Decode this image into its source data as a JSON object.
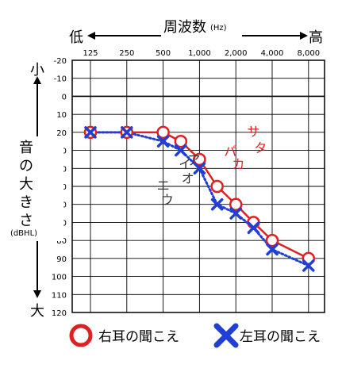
{
  "chart_data": {
    "type": "line",
    "freq_title": "周波数",
    "freq_unit": "(Hz)",
    "freq_low": "低",
    "freq_high": "高",
    "level_small": "小",
    "level_large": "大",
    "ylabel": "音の大きさ",
    "yunit": "(dBHL)",
    "categories": [
      "125",
      "250",
      "500",
      "1,000",
      "2,000",
      "4,000",
      "8,000"
    ],
    "x_tick_values": [
      125,
      250,
      500,
      1000,
      2000,
      4000,
      8000
    ],
    "x_scale": "log2",
    "ylim": [
      -20,
      120
    ],
    "y_ticks": [
      -20,
      -10,
      0,
      10,
      20,
      30,
      40,
      50,
      60,
      70,
      80,
      90,
      100,
      110,
      120
    ],
    "y_inverted": true,
    "grid": true,
    "series": [
      {
        "name": "右耳の聞こえ",
        "color": "#e02020",
        "marker": "circle",
        "line": "solid",
        "points": [
          [
            125,
            20
          ],
          [
            250,
            20
          ],
          [
            500,
            20
          ],
          [
            700,
            25
          ],
          [
            1000,
            35
          ],
          [
            1400,
            50
          ],
          [
            2000,
            60
          ],
          [
            2800,
            70
          ],
          [
            4000,
            80
          ],
          [
            8000,
            90
          ]
        ]
      },
      {
        "name": "左耳の聞こえ",
        "color": "#1f3fd6",
        "marker": "cross",
        "line": "dotted",
        "points": [
          [
            125,
            20
          ],
          [
            250,
            20
          ],
          [
            500,
            25
          ],
          [
            700,
            30
          ],
          [
            1000,
            40
          ],
          [
            1400,
            60
          ],
          [
            2000,
            65
          ],
          [
            2800,
            73
          ],
          [
            4000,
            85
          ],
          [
            8000,
            94
          ]
        ]
      }
    ],
    "annotations": [
      {
        "text": "サ",
        "color": "#e02020",
        "x": 2800,
        "y": 22
      },
      {
        "text": "タ",
        "color": "#e02020",
        "x": 3200,
        "y": 31
      },
      {
        "text": "パ",
        "color": "#e02020",
        "x": 1800,
        "y": 33
      },
      {
        "text": "カ",
        "color": "#e02020",
        "x": 2100,
        "y": 40
      },
      {
        "text": "イ",
        "color": "#333333",
        "x": 760,
        "y": 40
      },
      {
        "text": "ア",
        "color": "#333333",
        "x": 900,
        "y": 38
      },
      {
        "text": "オ",
        "color": "#333333",
        "x": 800,
        "y": 48
      },
      {
        "text": "エ",
        "color": "#333333",
        "x": 500,
        "y": 52
      },
      {
        "text": "ウ",
        "color": "#333333",
        "x": 540,
        "y": 60
      }
    ],
    "legend_position": "bottom"
  }
}
